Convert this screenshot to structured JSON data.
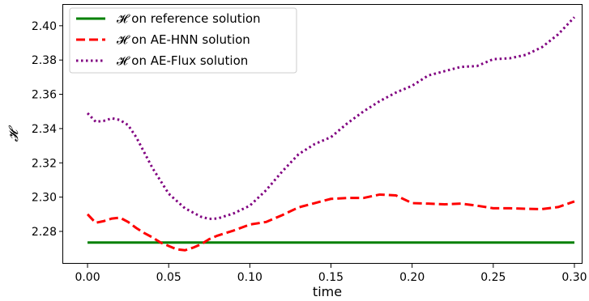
{
  "chart_data": {
    "type": "line",
    "xlabel": "time",
    "ylabel": "𝓗",
    "xlim": [
      -0.015,
      0.3045
    ],
    "ylim": [
      2.2611,
      2.4122
    ],
    "x_ticks": [
      0.0,
      0.05,
      0.1,
      0.15,
      0.2,
      0.25,
      0.3
    ],
    "x_tick_labels": [
      "0.00",
      "0.05",
      "0.10",
      "0.15",
      "0.20",
      "0.25",
      "0.30"
    ],
    "y_ticks": [
      2.28,
      2.3,
      2.32,
      2.34,
      2.36,
      2.38,
      2.4
    ],
    "y_tick_labels": [
      "2.28",
      "2.30",
      "2.32",
      "2.34",
      "2.36",
      "2.38",
      "2.40"
    ],
    "grid": false,
    "legend_position": "top-left",
    "series": [
      {
        "name": "𝓗 on reference solution",
        "color": "#008000",
        "style": "solid",
        "x": [
          0.0,
          0.3
        ],
        "y": [
          2.2735,
          2.2735
        ]
      },
      {
        "name": "𝓗 on AE-HNN solution",
        "color": "#ff0000",
        "style": "dashed",
        "x": [
          0.0,
          0.005,
          0.01,
          0.015,
          0.02,
          0.025,
          0.03,
          0.035,
          0.04,
          0.045,
          0.05,
          0.055,
          0.06,
          0.065,
          0.07,
          0.075,
          0.08,
          0.09,
          0.1,
          0.11,
          0.12,
          0.13,
          0.14,
          0.15,
          0.16,
          0.17,
          0.18,
          0.19,
          0.2,
          0.21,
          0.22,
          0.23,
          0.24,
          0.25,
          0.26,
          0.27,
          0.28,
          0.29,
          0.3
        ],
        "y": [
          2.29,
          2.285,
          2.286,
          2.2875,
          2.288,
          2.2855,
          2.282,
          2.279,
          2.2765,
          2.2735,
          2.2715,
          2.2695,
          2.269,
          2.2705,
          2.2725,
          2.2755,
          2.2775,
          2.2805,
          2.284,
          2.2855,
          2.2895,
          2.294,
          2.2965,
          2.299,
          2.2995,
          2.2995,
          2.3015,
          2.301,
          2.2965,
          2.2962,
          2.2958,
          2.2962,
          2.295,
          2.2935,
          2.2935,
          2.2932,
          2.293,
          2.2942,
          2.2975
        ]
      },
      {
        "name": "𝓗 on AE-Flux solution",
        "color": "#800080",
        "style": "dotted",
        "x": [
          0.0,
          0.005,
          0.01,
          0.015,
          0.02,
          0.025,
          0.03,
          0.04,
          0.05,
          0.06,
          0.07,
          0.075,
          0.08,
          0.09,
          0.1,
          0.11,
          0.12,
          0.13,
          0.14,
          0.15,
          0.16,
          0.17,
          0.18,
          0.19,
          0.2,
          0.21,
          0.22,
          0.23,
          0.24,
          0.25,
          0.26,
          0.27,
          0.28,
          0.29,
          0.3
        ],
        "y": [
          2.349,
          2.344,
          2.3445,
          2.346,
          2.345,
          2.342,
          2.335,
          2.317,
          2.302,
          2.2935,
          2.2885,
          2.2873,
          2.2875,
          2.2905,
          2.295,
          2.304,
          2.315,
          2.325,
          2.331,
          2.335,
          2.343,
          2.35,
          2.356,
          2.361,
          2.365,
          2.371,
          2.3735,
          2.376,
          2.3765,
          2.3805,
          2.381,
          2.383,
          2.3875,
          2.395,
          2.405
        ]
      }
    ]
  }
}
